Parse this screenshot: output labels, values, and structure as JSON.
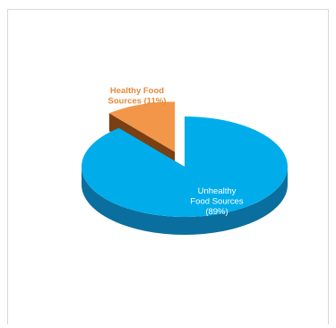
{
  "chart_data": {
    "type": "pie",
    "title": "",
    "categories": [
      "Healthy Food Sources",
      "Unhealthy Food Sources"
    ],
    "values": [
      11,
      89
    ],
    "unit": "%",
    "style": "3d-exploded",
    "colors": {
      "Healthy Food Sources": {
        "top": "#f2974a",
        "side": "#7a3f12"
      },
      "Unhealthy Food Sources": {
        "top": "#00adea",
        "side": "#0a6f9e"
      }
    },
    "labels": [
      {
        "category": "Healthy Food Sources",
        "lines": [
          "Healthy Food",
          "Sources (11%)"
        ]
      },
      {
        "category": "Unhealthy Food Sources",
        "lines": [
          "Unhealthy",
          "Food Sources",
          "(89%)"
        ]
      }
    ]
  }
}
